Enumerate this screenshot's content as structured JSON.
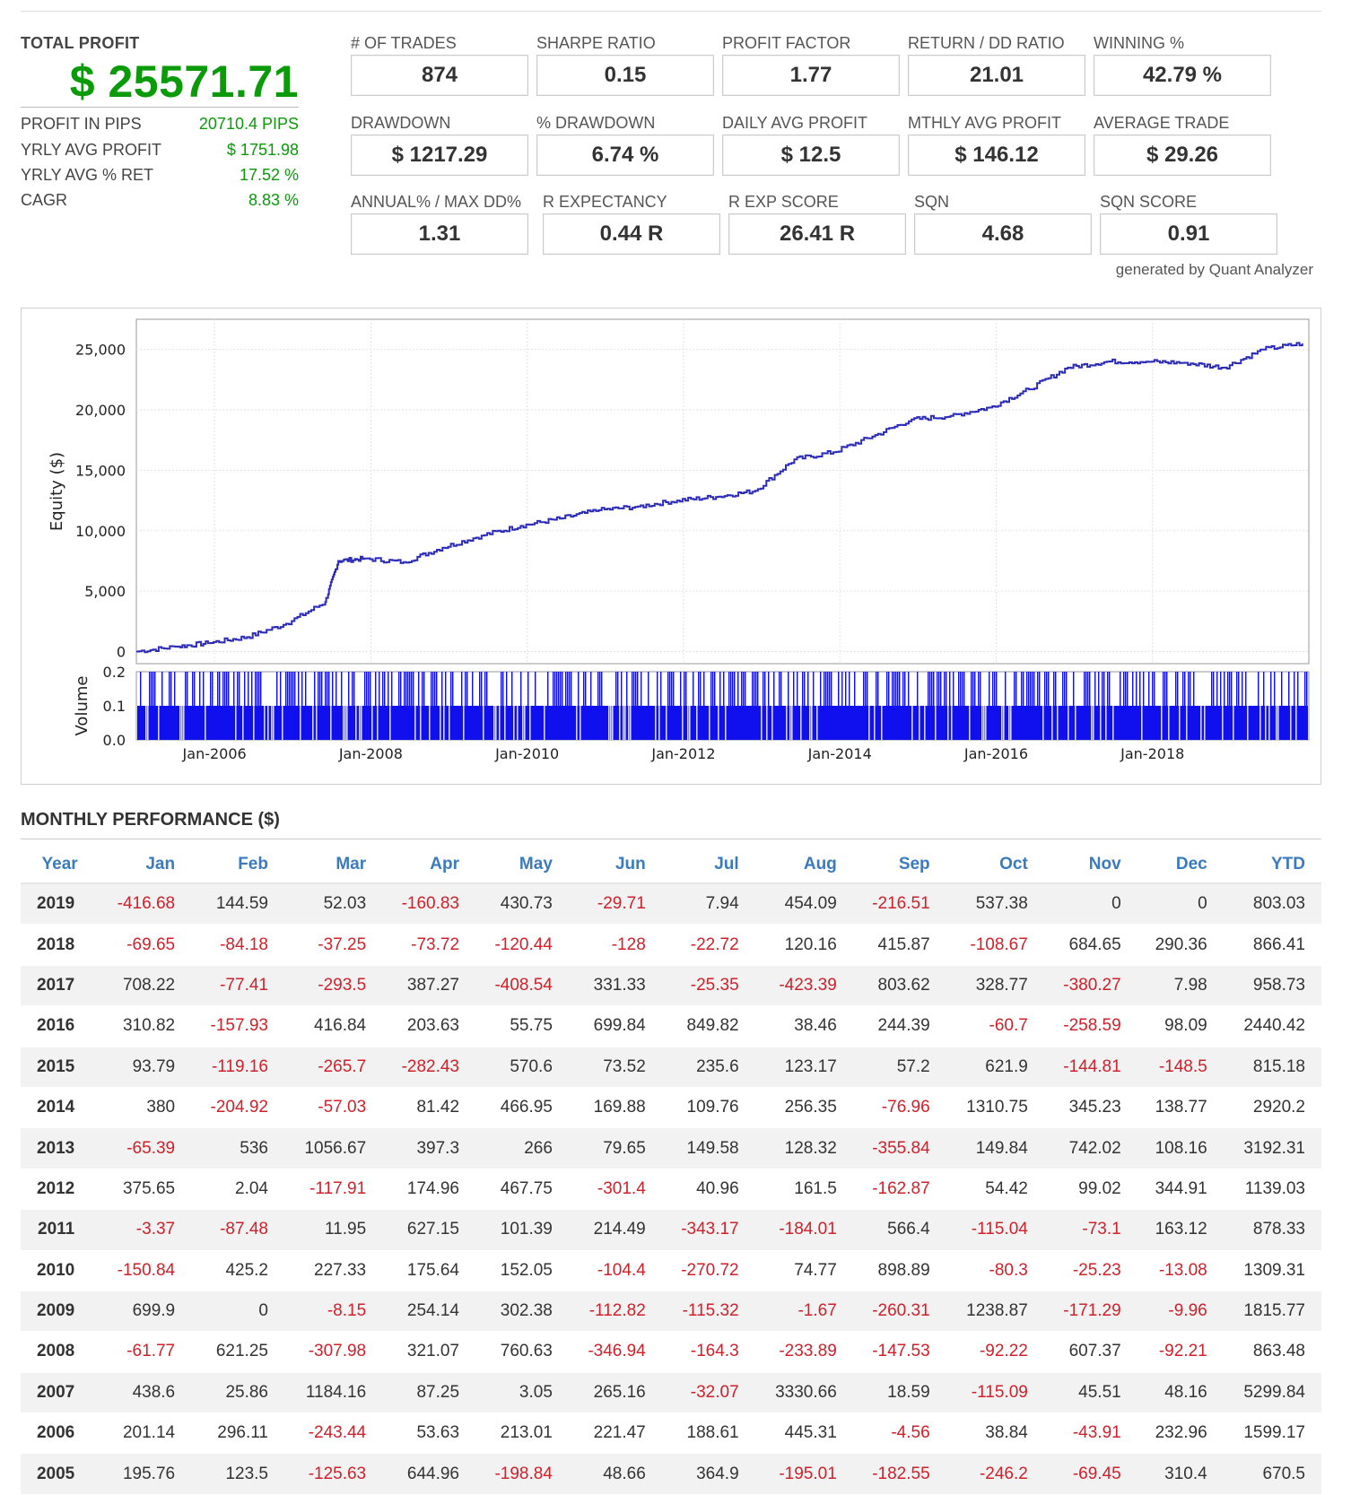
{
  "summary": {
    "total_profit_label": "TOTAL PROFIT",
    "total_profit_value": "$ 25571.71",
    "items": [
      {
        "label": "PROFIT IN PIPS",
        "value": "20710.4 PIPS"
      },
      {
        "label": "YRLY AVG PROFIT",
        "value": "$ 1751.98"
      },
      {
        "label": "YRLY AVG % RET",
        "value": "17.52 %"
      },
      {
        "label": "CAGR",
        "value": "8.83 %"
      }
    ]
  },
  "metrics": [
    {
      "label": "# OF TRADES",
      "value": "874"
    },
    {
      "label": "SHARPE RATIO",
      "value": "0.15"
    },
    {
      "label": "PROFIT FACTOR",
      "value": "1.77"
    },
    {
      "label": "RETURN / DD RATIO",
      "value": "21.01"
    },
    {
      "label": "WINNING %",
      "value": "42.79 %"
    },
    {
      "label": "DRAWDOWN",
      "value": "$ 1217.29"
    },
    {
      "label": "% DRAWDOWN",
      "value": "6.74 %"
    },
    {
      "label": "DAILY AVG PROFIT",
      "value": "$ 12.5"
    },
    {
      "label": "MTHLY AVG PROFIT",
      "value": "$ 146.12"
    },
    {
      "label": "AVERAGE TRADE",
      "value": "$ 29.26"
    },
    {
      "label": "ANNUAL% / MAX DD%",
      "value": "1.31"
    },
    {
      "label": "R EXPECTANCY",
      "value": "0.44 R"
    },
    {
      "label": "R EXP SCORE",
      "value": "26.41 R"
    },
    {
      "label": "SQN",
      "value": "4.68"
    },
    {
      "label": "SQN SCORE",
      "value": "0.91"
    }
  ],
  "credit": "generated by Quant Analyzer",
  "chart_data": {
    "type": "line",
    "ylabel": "Equity ($)",
    "ylim": [
      -1000,
      27500
    ],
    "yticks": [
      "0",
      "5,000",
      "10,000",
      "15,000",
      "20,000",
      "25,000"
    ],
    "x_tick_labels": [
      "Jan-2006",
      "Jan-2008",
      "Jan-2010",
      "Jan-2012",
      "Jan-2014",
      "Jan-2016",
      "Jan-2018"
    ],
    "series": [
      {
        "x": [
          "2005-01",
          "2005-07",
          "2005-12",
          "2006-06",
          "2006-12",
          "2007-06",
          "2007-08",
          "2007-12",
          "2008-06",
          "2008-12",
          "2009-06",
          "2009-12",
          "2010-06",
          "2010-12",
          "2011-06",
          "2011-12",
          "2012-06",
          "2012-12",
          "2013-06",
          "2013-12",
          "2014-06",
          "2014-12",
          "2015-06",
          "2015-12",
          "2016-06",
          "2016-12",
          "2017-06",
          "2017-12",
          "2018-06",
          "2018-12",
          "2019-06",
          "2019-12"
        ],
        "values": [
          0,
          400,
          700,
          1200,
          2300,
          4100,
          7500,
          7700,
          7400,
          8600,
          9600,
          10400,
          11000,
          11700,
          12000,
          12500,
          12800,
          13300,
          15900,
          16500,
          17800,
          19200,
          19500,
          20200,
          21700,
          23500,
          24000,
          24000,
          23900,
          23500,
          25000,
          25500
        ]
      }
    ],
    "volume_ylabel": "Volume",
    "volume_yticks": [
      "0.0",
      "0.1",
      "0.2"
    ],
    "volume_ylim": [
      0,
      0.2
    ]
  },
  "monthly": {
    "title": "MONTHLY PERFORMANCE ($)",
    "headers": [
      "Year",
      "Jan",
      "Feb",
      "Mar",
      "Apr",
      "May",
      "Jun",
      "Jul",
      "Aug",
      "Sep",
      "Oct",
      "Nov",
      "Dec",
      "YTD"
    ],
    "rows": [
      [
        "2019",
        "-416.68",
        "144.59",
        "52.03",
        "-160.83",
        "430.73",
        "-29.71",
        "7.94",
        "454.09",
        "-216.51",
        "537.38",
        "0",
        "0",
        "803.03"
      ],
      [
        "2018",
        "-69.65",
        "-84.18",
        "-37.25",
        "-73.72",
        "-120.44",
        "-128",
        "-22.72",
        "120.16",
        "415.87",
        "-108.67",
        "684.65",
        "290.36",
        "866.41"
      ],
      [
        "2017",
        "708.22",
        "-77.41",
        "-293.5",
        "387.27",
        "-408.54",
        "331.33",
        "-25.35",
        "-423.39",
        "803.62",
        "328.77",
        "-380.27",
        "7.98",
        "958.73"
      ],
      [
        "2016",
        "310.82",
        "-157.93",
        "416.84",
        "203.63",
        "55.75",
        "699.84",
        "849.82",
        "38.46",
        "244.39",
        "-60.7",
        "-258.59",
        "98.09",
        "2440.42"
      ],
      [
        "2015",
        "93.79",
        "-119.16",
        "-265.7",
        "-282.43",
        "570.6",
        "73.52",
        "235.6",
        "123.17",
        "57.2",
        "621.9",
        "-144.81",
        "-148.5",
        "815.18"
      ],
      [
        "2014",
        "380",
        "-204.92",
        "-57.03",
        "81.42",
        "466.95",
        "169.88",
        "109.76",
        "256.35",
        "-76.96",
        "1310.75",
        "345.23",
        "138.77",
        "2920.2"
      ],
      [
        "2013",
        "-65.39",
        "536",
        "1056.67",
        "397.3",
        "266",
        "79.65",
        "149.58",
        "128.32",
        "-355.84",
        "149.84",
        "742.02",
        "108.16",
        "3192.31"
      ],
      [
        "2012",
        "375.65",
        "2.04",
        "-117.91",
        "174.96",
        "467.75",
        "-301.4",
        "40.96",
        "161.5",
        "-162.87",
        "54.42",
        "99.02",
        "344.91",
        "1139.03"
      ],
      [
        "2011",
        "-3.37",
        "-87.48",
        "11.95",
        "627.15",
        "101.39",
        "214.49",
        "-343.17",
        "-184.01",
        "566.4",
        "-115.04",
        "-73.1",
        "163.12",
        "878.33"
      ],
      [
        "2010",
        "-150.84",
        "425.2",
        "227.33",
        "175.64",
        "152.05",
        "-104.4",
        "-270.72",
        "74.77",
        "898.89",
        "-80.3",
        "-25.23",
        "-13.08",
        "1309.31"
      ],
      [
        "2009",
        "699.9",
        "0",
        "-8.15",
        "254.14",
        "302.38",
        "-112.82",
        "-115.32",
        "-1.67",
        "-260.31",
        "1238.87",
        "-171.29",
        "-9.96",
        "1815.77"
      ],
      [
        "2008",
        "-61.77",
        "621.25",
        "-307.98",
        "321.07",
        "760.63",
        "-346.94",
        "-164.3",
        "-233.89",
        "-147.53",
        "-92.22",
        "607.37",
        "-92.21",
        "863.48"
      ],
      [
        "2007",
        "438.6",
        "25.86",
        "1184.16",
        "87.25",
        "3.05",
        "265.16",
        "-32.07",
        "3330.66",
        "18.59",
        "-115.09",
        "45.51",
        "48.16",
        "5299.84"
      ],
      [
        "2006",
        "201.14",
        "296.11",
        "-243.44",
        "53.63",
        "213.01",
        "221.47",
        "188.61",
        "445.31",
        "-4.56",
        "38.84",
        "-43.91",
        "232.96",
        "1599.17"
      ],
      [
        "2005",
        "195.76",
        "123.5",
        "-125.63",
        "644.96",
        "-198.84",
        "48.66",
        "364.9",
        "-195.01",
        "-182.55",
        "-246.2",
        "-69.45",
        "310.4",
        "670.5"
      ]
    ]
  },
  "colors": {
    "profit_green": "#0a9a0a",
    "negative_red": "#d0202a",
    "header_blue": "#3a7bbf",
    "equity_line": "#2b2bb8",
    "volume_bar": "#1010ee"
  }
}
